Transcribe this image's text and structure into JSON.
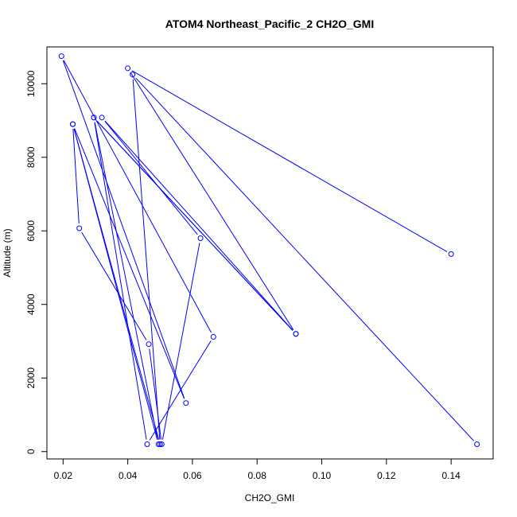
{
  "chart_data": {
    "type": "line",
    "title": "ATOM4 Northeast_Pacific_2 CH2O_GMI",
    "xlabel": "CH2O_GMI",
    "ylabel": "Altitude (m)",
    "xlim": [
      0.015,
      0.153
    ],
    "ylim": [
      -200,
      11000
    ],
    "x_ticks": [
      0.02,
      0.04,
      0.06,
      0.08,
      0.1,
      0.12,
      0.14
    ],
    "x_tick_labels": [
      "0.02",
      "0.04",
      "0.06",
      "0.08",
      "0.10",
      "0.12",
      "0.14"
    ],
    "y_ticks": [
      0,
      2000,
      4000,
      6000,
      8000,
      10000
    ],
    "y_tick_labels": [
      "0",
      "2000",
      "4000",
      "6000",
      "8000",
      "10000"
    ],
    "grid": false,
    "series": [
      {
        "marker": "open-circle",
        "color": "#0000ff",
        "points": [
          {
            "x": 0.148,
            "y": 200
          },
          {
            "x": 0.0415,
            "y": 10250
          },
          {
            "x": 0.05,
            "y": 200
          },
          {
            "x": 0.023,
            "y": 8900
          },
          {
            "x": 0.0495,
            "y": 200
          },
          {
            "x": 0.0295,
            "y": 9080
          },
          {
            "x": 0.046,
            "y": 200
          },
          {
            "x": 0.0665,
            "y": 3120
          },
          {
            "x": 0.0195,
            "y": 10750
          },
          {
            "x": 0.058,
            "y": 1320
          },
          {
            "x": 0.023,
            "y": 8900
          },
          {
            "x": 0.025,
            "y": 6070
          },
          {
            "x": 0.0465,
            "y": 2920
          },
          {
            "x": 0.0505,
            "y": 200
          },
          {
            "x": 0.0625,
            "y": 5800
          },
          {
            "x": 0.032,
            "y": 9080
          },
          {
            "x": 0.092,
            "y": 3200
          },
          {
            "x": 0.0295,
            "y": 9080
          },
          {
            "x": 0.092,
            "y": 3200
          },
          {
            "x": 0.04,
            "y": 10420
          },
          {
            "x": 0.14,
            "y": 5370
          }
        ]
      }
    ]
  }
}
